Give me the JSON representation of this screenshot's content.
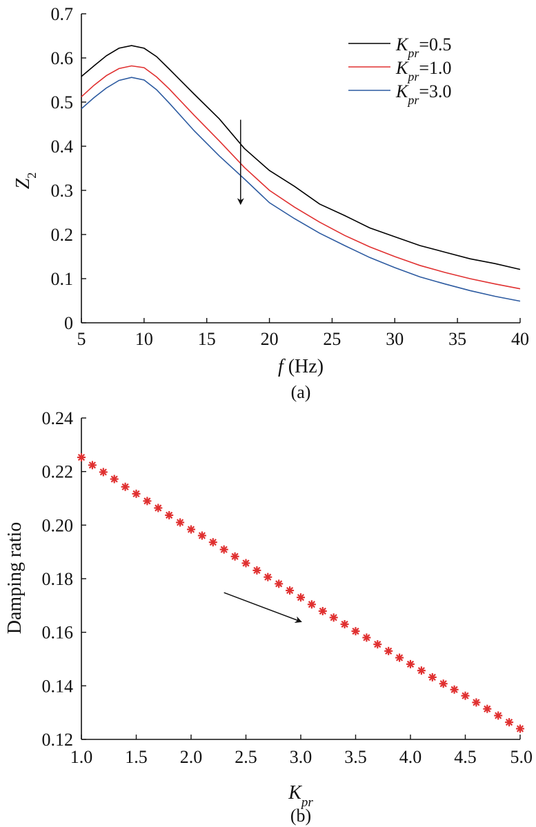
{
  "chart_data": [
    {
      "type": "line",
      "caption": "(a)",
      "xlabel_var": "f",
      "xlabel_unit": " (Hz)",
      "ylabel_main": "Z",
      "ylabel_sub": "2",
      "xlim": [
        5,
        40
      ],
      "ylim": [
        0,
        0.7
      ],
      "xticks": [
        "5",
        "10",
        "15",
        "20",
        "25",
        "30",
        "35",
        "40"
      ],
      "yticks": [
        "0",
        "0.1",
        "0.2",
        "0.3",
        "0.4",
        "0.5",
        "0.6",
        "0.7"
      ],
      "grid": false,
      "legend_position": "top-right",
      "legend_var": "K",
      "legend_sub": "pr",
      "x": [
        5,
        6,
        7,
        8,
        9,
        10,
        11,
        12,
        14,
        16,
        18,
        20,
        22,
        24,
        26,
        28,
        30,
        32,
        34,
        36,
        38,
        40
      ],
      "series": [
        {
          "name": "=0.5",
          "color": "#000000",
          "values": [
            0.558,
            0.582,
            0.605,
            0.622,
            0.628,
            0.622,
            0.603,
            0.575,
            0.518,
            0.462,
            0.395,
            0.345,
            0.309,
            0.269,
            0.243,
            0.215,
            0.195,
            0.175,
            0.16,
            0.145,
            0.134,
            0.121
          ]
        },
        {
          "name": "=1.0",
          "color": "#e03030",
          "values": [
            0.512,
            0.538,
            0.56,
            0.576,
            0.582,
            0.578,
            0.557,
            0.53,
            0.47,
            0.412,
            0.352,
            0.3,
            0.262,
            0.228,
            0.198,
            0.172,
            0.15,
            0.13,
            0.114,
            0.1,
            0.088,
            0.077
          ]
        },
        {
          "name": "=3.0",
          "color": "#2c5aa0",
          "values": [
            0.485,
            0.51,
            0.532,
            0.549,
            0.556,
            0.55,
            0.528,
            0.498,
            0.435,
            0.378,
            0.326,
            0.272,
            0.236,
            0.203,
            0.175,
            0.148,
            0.125,
            0.104,
            0.088,
            0.073,
            0.06,
            0.049
          ]
        }
      ],
      "annotation": {
        "type": "arrow",
        "x": 17.7,
        "y_from": 0.46,
        "y_to": 0.27
      }
    },
    {
      "type": "scatter",
      "caption": "(b)",
      "ylabel": "Damping ratio",
      "xlabel_var": "K",
      "xlabel_sub": "pr",
      "xlim": [
        1.0,
        5.0
      ],
      "ylim": [
        0.12,
        0.24
      ],
      "xticks": [
        "1.0",
        "1.5",
        "2.0",
        "2.5",
        "3.0",
        "3.5",
        "4.0",
        "4.5",
        "5.0"
      ],
      "yticks": [
        "0.12",
        "0.14",
        "0.16",
        "0.18",
        "0.20",
        "0.22",
        "0.24"
      ],
      "grid": false,
      "marker": "asterisk",
      "color": "#e03030",
      "x": [
        1.0,
        1.1,
        1.2,
        1.3,
        1.4,
        1.5,
        1.6,
        1.7,
        1.8,
        1.9,
        2.0,
        2.1,
        2.2,
        2.3,
        2.4,
        2.5,
        2.6,
        2.7,
        2.8,
        2.9,
        3.0,
        3.1,
        3.2,
        3.3,
        3.4,
        3.5,
        3.6,
        3.7,
        3.8,
        3.9,
        4.0,
        4.1,
        4.2,
        4.3,
        4.4,
        4.5,
        4.6,
        4.7,
        4.8,
        4.9,
        5.0
      ],
      "y": [
        0.2253,
        0.2224,
        0.2198,
        0.2172,
        0.2143,
        0.2117,
        0.209,
        0.2064,
        0.2037,
        0.201,
        0.1984,
        0.1961,
        0.1936,
        0.1909,
        0.1883,
        0.1858,
        0.1831,
        0.1806,
        0.1781,
        0.1756,
        0.173,
        0.1704,
        0.1679,
        0.1655,
        0.163,
        0.1604,
        0.158,
        0.1555,
        0.153,
        0.1505,
        0.1481,
        0.1457,
        0.1432,
        0.1408,
        0.1386,
        0.1363,
        0.1338,
        0.1314,
        0.1289,
        0.1264,
        0.124
      ],
      "annotation": {
        "type": "arrow",
        "x_from": 2.3,
        "y_from": 0.1748,
        "x_to": 3.0,
        "y_to": 0.164
      }
    }
  ]
}
